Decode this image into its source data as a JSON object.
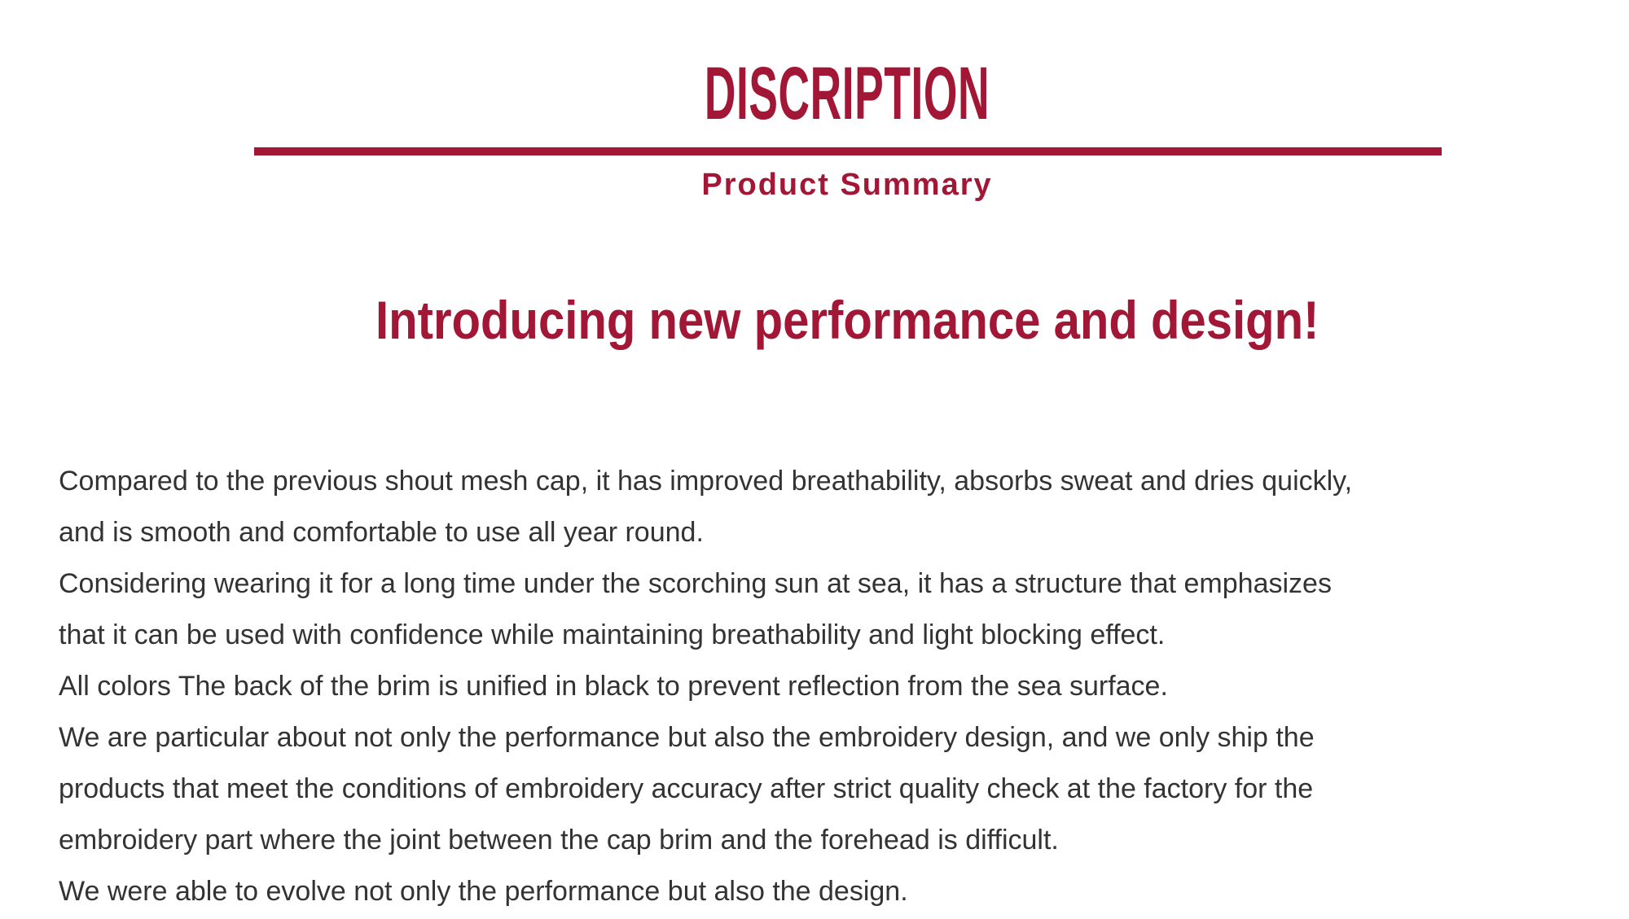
{
  "theme": {
    "accent_color": "#a21636",
    "body_text_color": "#333333",
    "background_color": "#ffffff"
  },
  "header": {
    "title": "DISCRIPTION",
    "subtitle": "Product Summary"
  },
  "main": {
    "heading": "Introducing new performance and design!",
    "body_lines": [
      "Compared to the previous shout mesh cap, it has improved breathability, absorbs sweat and dries quickly,",
      "and is smooth and comfortable to use all year round.",
      "Considering wearing it for a long time under the scorching sun at sea, it has a structure that emphasizes",
      "that it can be used with confidence while maintaining breathability and light blocking effect.",
      "All colors The back of the brim is unified in black to prevent reflection from the sea surface.",
      "We are particular about not only the performance but also the embroidery design, and we only ship the",
      "products that meet the conditions of embroidery accuracy after strict quality check at the factory for the",
      "embroidery part where the joint between the cap brim and the forehead is difficult.",
      "We were able to evolve not only the performance but also the design."
    ]
  }
}
